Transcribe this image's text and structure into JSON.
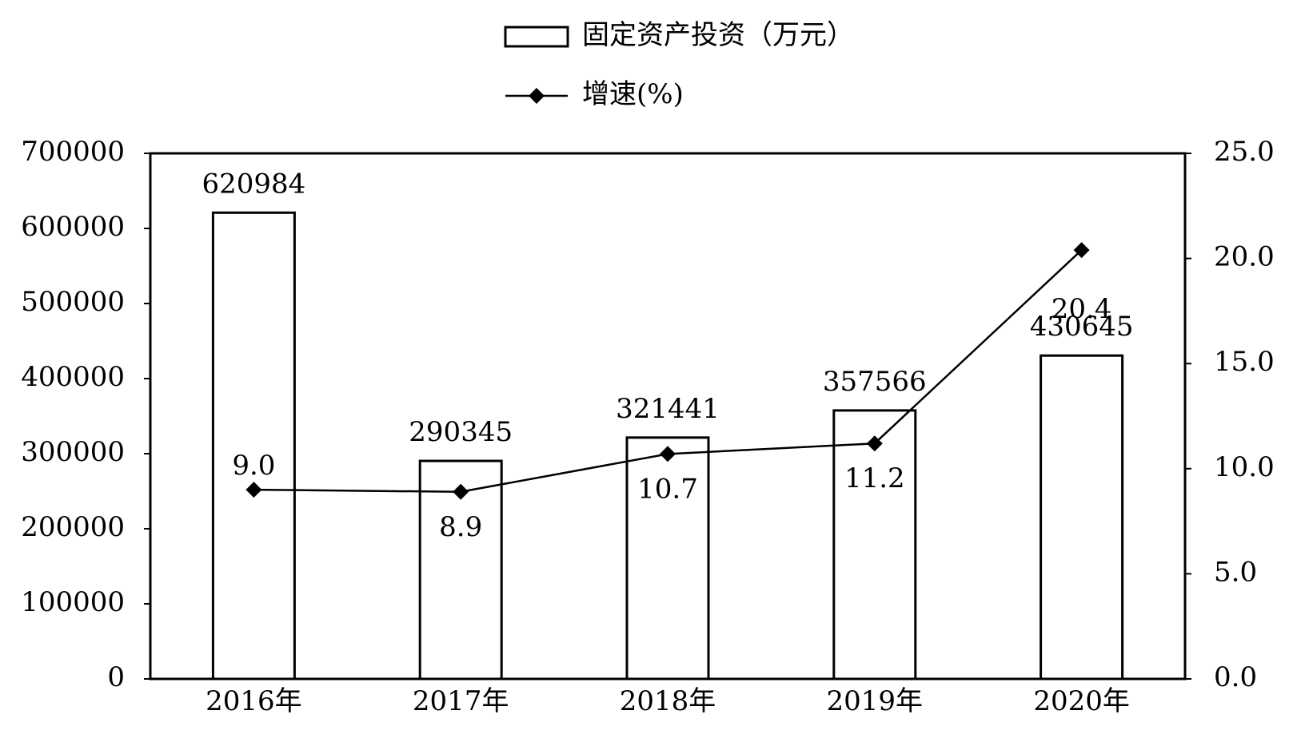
{
  "chart_data": {
    "type": "bar",
    "categories": [
      "2016年",
      "2017年",
      "2018年",
      "2019年",
      "2020年"
    ],
    "series": [
      {
        "name": "固定资产投资（万元）",
        "type": "bar",
        "color": "#ffffff",
        "values": [
          620984,
          290345,
          321441,
          357566,
          430645
        ]
      },
      {
        "name": "增速(%)",
        "type": "line",
        "axis": "y2",
        "color": "#000000",
        "values": [
          9.0,
          8.9,
          10.7,
          11.2,
          20.4
        ],
        "value_labels": [
          "9.0",
          "8.9",
          "10.7",
          "11.2",
          "20.4"
        ]
      }
    ],
    "ylim": [
      0,
      700000
    ],
    "yticks": [
      0,
      100000,
      200000,
      300000,
      400000,
      500000,
      600000,
      700000
    ],
    "y2lim": [
      0,
      25
    ],
    "y2ticks": [
      {
        "value": 0,
        "label": "0.0"
      },
      {
        "value": 5,
        "label": "5.0"
      },
      {
        "value": 10,
        "label": "10.0"
      },
      {
        "value": 15,
        "label": "15.0"
      },
      {
        "value": 20,
        "label": "20.0"
      },
      {
        "value": 25,
        "label": "25.0"
      }
    ],
    "grid": false,
    "legend": "top"
  }
}
